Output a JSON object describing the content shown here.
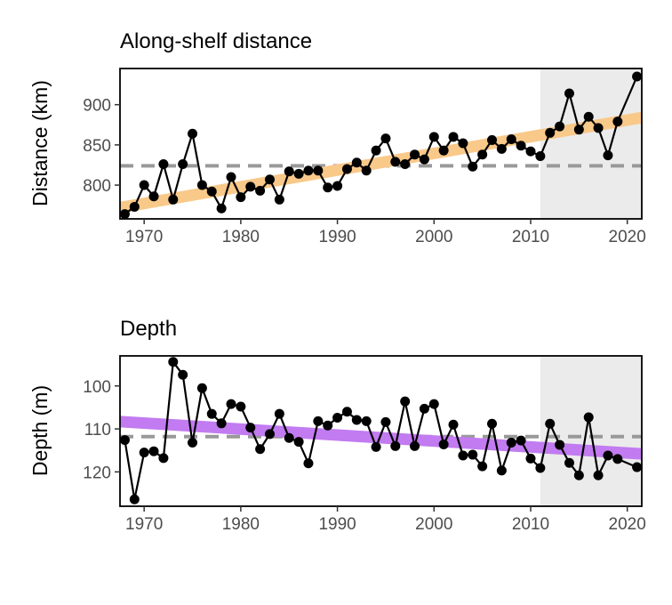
{
  "chart_data": [
    {
      "type": "line",
      "title": "Along-shelf distance",
      "xlabel": "",
      "ylabel": "Distance (km)",
      "xlim": [
        1967.5,
        2021.5
      ],
      "ylim": [
        758,
        945
      ],
      "x_ticks": [
        1970,
        1980,
        1990,
        2000,
        2010,
        2020
      ],
      "y_ticks": [
        800,
        850,
        900
      ],
      "y_reversed": false,
      "shaded_period": [
        2011,
        2021.5
      ],
      "reference_line": 824,
      "trend": {
        "x": [
          1967.5,
          2021.5
        ],
        "y": [
          772,
          884
        ],
        "color": "#F9C98A"
      },
      "series": [
        {
          "x": [
            1968,
            1969,
            1970,
            1971,
            1972,
            1973,
            1974,
            1975,
            1976,
            1977,
            1978,
            1979,
            1980,
            1981,
            1982,
            1983,
            1984,
            1985,
            1986,
            1987,
            1988,
            1989,
            1990,
            1991,
            1992,
            1993,
            1994,
            1995,
            1996,
            1997,
            1998,
            1999,
            2000,
            2001,
            2002,
            2003,
            2004,
            2005,
            2006,
            2007,
            2008,
            2009,
            2010,
            2011,
            2012,
            2013,
            2014,
            2015,
            2016,
            2017,
            2018,
            2019,
            2021
          ],
          "values": [
            764,
            773,
            800,
            786,
            826,
            782,
            826,
            864,
            800,
            792,
            771,
            810,
            785,
            798,
            793,
            807,
            782,
            817,
            814,
            818,
            818,
            797,
            799,
            820,
            828,
            818,
            843,
            858,
            829,
            826,
            838,
            832,
            860,
            843,
            860,
            852,
            823,
            838,
            856,
            845,
            857,
            849,
            842,
            836,
            865,
            873,
            914,
            869,
            885,
            871,
            837,
            879,
            935
          ]
        }
      ],
      "colors": {
        "line": "#000000",
        "reference": "#999999",
        "shade": "#EBEBEB"
      }
    },
    {
      "type": "line",
      "title": "Depth",
      "xlabel": "",
      "ylabel": "Depth (m)",
      "xlim": [
        1967.5,
        2021.5
      ],
      "ylim": [
        93,
        128
      ],
      "x_ticks": [
        1970,
        1980,
        1990,
        2000,
        2010,
        2020
      ],
      "y_ticks": [
        100,
        110,
        120
      ],
      "y_reversed": true,
      "shaded_period": [
        2011,
        2021.5
      ],
      "reference_line": 111.8,
      "trend": {
        "x": [
          1967.5,
          2021.5
        ],
        "y": [
          108.3,
          115.8
        ],
        "color": "#C27BF0"
      },
      "series": [
        {
          "x": [
            1968,
            1969,
            1970,
            1971,
            1972,
            1973,
            1974,
            1975,
            1976,
            1977,
            1978,
            1979,
            1980,
            1981,
            1982,
            1983,
            1984,
            1985,
            1986,
            1987,
            1988,
            1989,
            1990,
            1991,
            1992,
            1993,
            1994,
            1995,
            1996,
            1997,
            1998,
            1999,
            2000,
            2001,
            2002,
            2003,
            2004,
            2005,
            2006,
            2007,
            2008,
            2009,
            2010,
            2011,
            2012,
            2013,
            2014,
            2015,
            2016,
            2017,
            2018,
            2019,
            2021
          ],
          "values": [
            112.6,
            126.4,
            115.5,
            115.2,
            116.8,
            94.4,
            97.4,
            113.2,
            100.5,
            106.5,
            108.7,
            104.2,
            104.8,
            109.7,
            114.7,
            111.2,
            106.5,
            112.1,
            113.0,
            118.0,
            108.2,
            109.2,
            107.4,
            106.0,
            107.9,
            108.2,
            114.2,
            108.4,
            114.0,
            103.6,
            114.0,
            105.3,
            104.2,
            113.6,
            109.0,
            116.2,
            116.0,
            118.7,
            108.8,
            119.7,
            113.2,
            112.7,
            116.9,
            119.1,
            108.8,
            113.7,
            117.9,
            120.8,
            107.3,
            120.8,
            116.2,
            117.0,
            118.9
          ]
        }
      ],
      "colors": {
        "line": "#000000",
        "reference": "#999999",
        "shade": "#EBEBEB"
      }
    }
  ]
}
